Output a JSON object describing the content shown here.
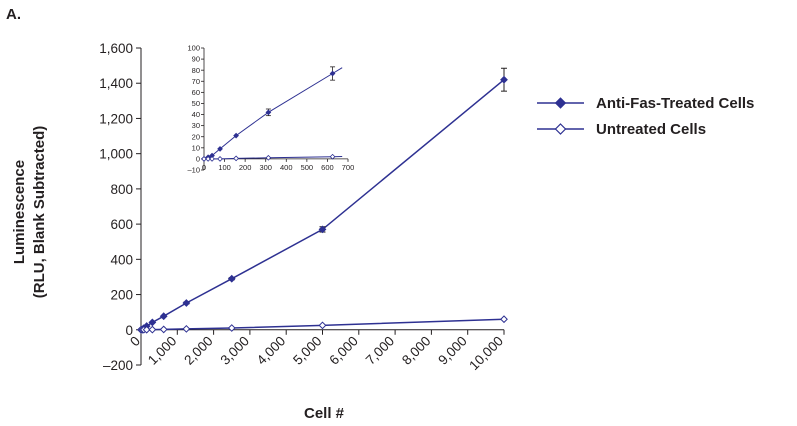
{
  "panel_label": "A.",
  "colors": {
    "series": "#2e3192",
    "text": "#231f20"
  },
  "legend": [
    {
      "label": "Anti-Fas-Treated Cells",
      "marker": "filled-diamond"
    },
    {
      "label": "Untreated Cells",
      "marker": "open-diamond"
    }
  ],
  "chart_data": {
    "type": "line",
    "title": "",
    "xlabel": "Cell #",
    "ylabel_line1": "Luminescence",
    "ylabel_line2": "(RLU, Blank Subtracted)",
    "xlim": [
      0,
      10000
    ],
    "ylim": [
      -200,
      1600
    ],
    "x_ticks": [
      0,
      1000,
      2000,
      3000,
      4000,
      5000,
      6000,
      7000,
      8000,
      9000,
      10000
    ],
    "x_tick_labels": [
      "0",
      "1,000",
      "2,000",
      "3,000",
      "4,000",
      "5,000",
      "6,000",
      "7,000",
      "8,000",
      "9,000",
      "10,000"
    ],
    "y_ticks": [
      -200,
      0,
      200,
      400,
      600,
      800,
      1000,
      1200,
      1400,
      1600
    ],
    "y_tick_labels": [
      "–200",
      "0",
      "200",
      "400",
      "600",
      "800",
      "1,000",
      "1,200",
      "1,400",
      "1,600"
    ],
    "grid": false,
    "legend_position": "right",
    "series": [
      {
        "name": "Anti-Fas-Treated Cells",
        "marker": "filled",
        "x": [
          0,
          39,
          78,
          156,
          313,
          625,
          1250,
          2500,
          5000,
          10000
        ],
        "y": [
          0,
          3,
          9,
          21,
          42,
          77,
          152,
          290,
          570,
          1420
        ],
        "err": [
          0,
          0,
          0,
          0,
          0,
          0,
          5,
          6,
          15,
          65
        ]
      },
      {
        "name": "Untreated Cells",
        "marker": "open",
        "x": [
          0,
          39,
          78,
          156,
          313,
          625,
          1250,
          2500,
          5000,
          10000
        ],
        "y": [
          0,
          0,
          0,
          0.5,
          1,
          2,
          5,
          10,
          25,
          60
        ],
        "err": [
          0,
          0,
          0,
          0,
          0,
          0,
          0,
          0,
          0,
          0
        ]
      }
    ],
    "inset": {
      "xlim": [
        0,
        700
      ],
      "ylim": [
        -10,
        100
      ],
      "x_ticks": [
        0,
        100,
        200,
        300,
        400,
        500,
        600,
        700
      ],
      "y_ticks": [
        -10,
        0,
        10,
        20,
        30,
        40,
        50,
        60,
        70,
        80,
        90,
        100
      ],
      "series": [
        {
          "name": "Anti-Fas-Treated Cells",
          "marker": "filled",
          "x": [
            0,
            20,
            39,
            78,
            156,
            313,
            625
          ],
          "y": [
            0,
            1.5,
            3,
            9,
            21,
            42,
            77
          ],
          "err": [
            0,
            0,
            0,
            0,
            0,
            3,
            6
          ]
        },
        {
          "name": "Untreated Cells",
          "marker": "open",
          "x": [
            0,
            20,
            39,
            78,
            156,
            313,
            625
          ],
          "y": [
            0,
            0,
            0,
            0,
            0.5,
            1,
            2
          ],
          "err": [
            0,
            0,
            0,
            0,
            0,
            0,
            0
          ]
        }
      ]
    }
  }
}
